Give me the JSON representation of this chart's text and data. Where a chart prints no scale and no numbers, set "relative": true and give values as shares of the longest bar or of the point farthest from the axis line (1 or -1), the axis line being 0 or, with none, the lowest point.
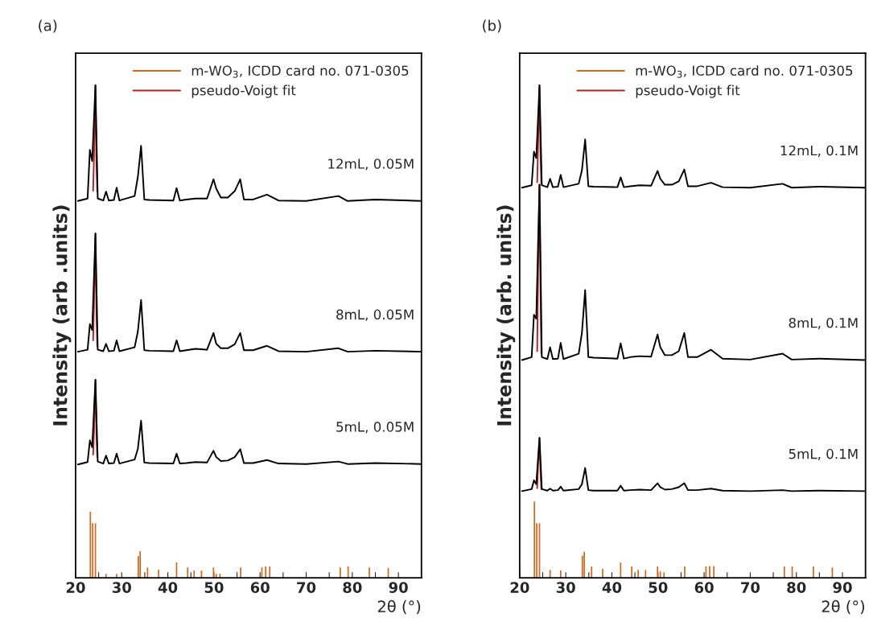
{
  "chart_data": [
    {
      "type": "line",
      "title": "(a)",
      "xlabel": "2θ (°)",
      "ylabel": "Intensity (arb .units)",
      "relative": true,
      "xlim": [
        20,
        95
      ],
      "xticks": [
        20,
        {
          "value": 25,
          "label": null
        },
        30,
        {
          "value": 35,
          "label": null
        },
        40,
        {
          "value": 45,
          "label": null
        },
        50,
        {
          "value": 55,
          "label": null
        },
        60,
        {
          "value": 65,
          "label": null
        },
        70,
        {
          "value": 75,
          "label": null
        },
        80,
        {
          "value": 85,
          "label": null
        },
        90
      ],
      "legend": "top right",
      "grid": false,
      "series": [
        {
          "name": "m-WO$_{3}$, ICDD card no. 071-0305",
          "type": "bar",
          "color": "#d2691e",
          "x": [
            23.2,
            23.7,
            24.3,
            26.6,
            28.9,
            33.6,
            34.0,
            35.6,
            38.0,
            41.9,
            44.3,
            45.7,
            47.3,
            49.9,
            50.5,
            51.3,
            55.8,
            60.4,
            61.2,
            62.1,
            77.4,
            79.1,
            83.7,
            87.8
          ],
          "values": [
            0.134,
            0.111,
            0.111,
            0.008,
            0.008,
            0.044,
            0.054,
            0.021,
            0.016,
            0.031,
            0.021,
            0.015,
            0.015,
            0.021,
            0.008,
            0.008,
            0.021,
            0.021,
            0.023,
            0.023,
            0.021,
            0.023,
            0.021,
            0.02
          ]
        },
        {
          "name": "pseudo-Voigt fit",
          "color": "#b22222",
          "x": [
            23.8,
            24.0,
            24.3,
            24.5,
            24.7
          ],
          "values": [
            0.786,
            0.86,
            1.0,
            0.85,
            0.784
          ]
        },
        {
          "color": "#b22222",
          "x": [
            23.8,
            24.0,
            24.3,
            24.5,
            24.7
          ],
          "values": [
            0.482,
            0.56,
            0.699,
            0.55,
            0.47
          ]
        },
        {
          "color": "#b22222",
          "x": [
            23.8,
            24.0,
            24.3,
            24.5,
            24.7
          ],
          "values": [
            0.25,
            0.3,
            0.402,
            0.3,
            0.245
          ]
        },
        {
          "name": "12mL, 0.05M",
          "color": "#000000",
          "x": [
            20.5,
            22.6,
            23.1,
            23.6,
            24.3,
            24.8,
            26.0,
            26.6,
            27.2,
            28.3,
            28.9,
            29.5,
            32.8,
            33.5,
            34.2,
            34.9,
            36,
            41.2,
            41.9,
            42.6,
            44,
            46,
            48.5,
            49.9,
            50.5,
            51.5,
            53,
            54.5,
            55.7,
            56.5,
            58.5,
            61.5,
            64,
            70,
            77,
            79,
            85,
            95
          ],
          "values": [
            0.765,
            0.77,
            0.869,
            0.846,
            1.0,
            0.77,
            0.766,
            0.784,
            0.766,
            0.767,
            0.792,
            0.766,
            0.775,
            0.814,
            0.877,
            0.768,
            0.767,
            0.766,
            0.791,
            0.766,
            0.768,
            0.77,
            0.77,
            0.809,
            0.79,
            0.772,
            0.772,
            0.785,
            0.809,
            0.768,
            0.768,
            0.778,
            0.766,
            0.765,
            0.775,
            0.765,
            0.768,
            0.765
          ]
        },
        {
          "name": "8mL, 0.05M",
          "color": "#000000",
          "x": [
            20.5,
            22.6,
            23.1,
            23.6,
            24.3,
            24.8,
            26.0,
            26.6,
            27.2,
            28.3,
            28.9,
            29.5,
            32.8,
            33.5,
            34.2,
            34.9,
            36,
            41.2,
            41.9,
            42.6,
            44,
            46,
            48.5,
            49.9,
            50.5,
            51.5,
            53,
            54.5,
            55.7,
            56.5,
            58.5,
            61.5,
            64,
            70,
            77,
            79,
            85,
            95
          ],
          "values": [
            0.459,
            0.463,
            0.515,
            0.503,
            0.699,
            0.463,
            0.46,
            0.475,
            0.46,
            0.461,
            0.482,
            0.46,
            0.468,
            0.5,
            0.564,
            0.462,
            0.461,
            0.46,
            0.482,
            0.46,
            0.462,
            0.465,
            0.463,
            0.497,
            0.475,
            0.466,
            0.466,
            0.474,
            0.497,
            0.462,
            0.462,
            0.471,
            0.46,
            0.459,
            0.466,
            0.459,
            0.461,
            0.459
          ]
        },
        {
          "name": "5mL, 0.05M",
          "color": "#000000",
          "x": [
            20.5,
            22.6,
            23.1,
            23.6,
            24.3,
            24.8,
            26.0,
            26.6,
            27.2,
            28.3,
            28.9,
            29.5,
            32.8,
            33.5,
            34.2,
            34.9,
            36,
            41.2,
            41.9,
            42.6,
            44,
            46,
            48.5,
            49.9,
            50.5,
            51.5,
            53,
            54.5,
            55.7,
            56.5,
            58.5,
            61.5,
            64,
            70,
            77,
            79,
            85,
            95
          ],
          "values": [
            0.23,
            0.235,
            0.279,
            0.265,
            0.402,
            0.236,
            0.232,
            0.248,
            0.232,
            0.233,
            0.252,
            0.232,
            0.24,
            0.262,
            0.319,
            0.234,
            0.233,
            0.232,
            0.252,
            0.232,
            0.233,
            0.235,
            0.234,
            0.258,
            0.245,
            0.237,
            0.238,
            0.245,
            0.261,
            0.233,
            0.233,
            0.239,
            0.232,
            0.231,
            0.236,
            0.231,
            0.233,
            0.231
          ]
        }
      ]
    },
    {
      "type": "line",
      "title": "(b)",
      "xlabel": "2θ (°)",
      "ylabel": "Intensity (arb. units)",
      "relative": true,
      "xlim": [
        20,
        95
      ],
      "xticks": [
        20,
        {
          "value": 25,
          "label": null
        },
        30,
        {
          "value": 35,
          "label": null
        },
        40,
        {
          "value": 45,
          "label": null
        },
        50,
        {
          "value": 55,
          "label": null
        },
        60,
        {
          "value": 65,
          "label": null
        },
        70,
        {
          "value": 75,
          "label": null
        },
        80,
        {
          "value": 85,
          "label": null
        },
        90
      ],
      "legend": "top right",
      "grid": false,
      "series": [
        {
          "name": "m-WO$_{3}$, ICDD card no. 071-0305",
          "type": "bar",
          "color": "#d2691e",
          "x": [
            23.2,
            23.7,
            24.3,
            26.6,
            28.9,
            33.6,
            34.0,
            35.6,
            38.0,
            41.9,
            44.3,
            45.7,
            47.3,
            49.9,
            50.5,
            51.3,
            55.8,
            60.4,
            61.2,
            62.1,
            77.4,
            79.1,
            83.7,
            87.8
          ],
          "values": [
            0.155,
            0.111,
            0.111,
            0.016,
            0.015,
            0.045,
            0.053,
            0.023,
            0.018,
            0.031,
            0.023,
            0.016,
            0.016,
            0.023,
            0.013,
            0.011,
            0.023,
            0.023,
            0.024,
            0.024,
            0.023,
            0.023,
            0.023,
            0.021
          ]
        },
        {
          "name": "pseudo-Voigt fit",
          "color": "#b22222",
          "x": [
            23.8,
            24.0,
            24.3,
            24.5,
            24.7
          ],
          "values": [
            0.803,
            0.88,
            1.0,
            0.87,
            0.8
          ]
        },
        {
          "color": "#b22222",
          "x": [
            23.8,
            24.0,
            24.3,
            24.5,
            24.7
          ],
          "values": [
            0.46,
            0.62,
            0.798,
            0.6,
            0.455
          ]
        },
        {
          "color": "#b22222",
          "x": [
            23.8,
            24.0,
            24.3,
            24.5,
            24.7
          ],
          "values": [
            0.182,
            0.23,
            0.284,
            0.22,
            0.18
          ]
        },
        {
          "name": "12mL, 0.1M",
          "color": "#000000",
          "x": [
            20.5,
            22.6,
            23.1,
            23.6,
            24.3,
            24.8,
            26.0,
            26.6,
            27.2,
            28.3,
            28.9,
            29.5,
            32.8,
            33.5,
            34.2,
            34.9,
            36,
            41.2,
            41.9,
            42.6,
            44,
            46,
            48.5,
            49.9,
            50.5,
            51.5,
            53,
            54.5,
            55.7,
            56.5,
            58.5,
            61.5,
            64,
            70,
            77,
            79,
            85,
            95
          ],
          "values": [
            0.792,
            0.797,
            0.865,
            0.852,
            1.0,
            0.797,
            0.793,
            0.81,
            0.793,
            0.794,
            0.818,
            0.793,
            0.8,
            0.827,
            0.89,
            0.795,
            0.794,
            0.793,
            0.813,
            0.793,
            0.795,
            0.797,
            0.796,
            0.826,
            0.81,
            0.798,
            0.798,
            0.805,
            0.829,
            0.795,
            0.795,
            0.802,
            0.793,
            0.792,
            0.8,
            0.792,
            0.794,
            0.792
          ]
        },
        {
          "name": "8mL, 0.1M",
          "color": "#000000",
          "x": [
            20.5,
            22.6,
            23.1,
            23.6,
            24.3,
            24.8,
            26.0,
            26.6,
            27.2,
            28.3,
            28.9,
            29.5,
            32.8,
            33.5,
            34.2,
            34.9,
            36,
            41.2,
            41.9,
            42.6,
            44,
            46,
            48.5,
            49.9,
            50.5,
            51.5,
            53,
            54.5,
            55.7,
            56.5,
            58.5,
            61.5,
            64,
            70,
            77,
            79,
            85,
            95
          ],
          "values": [
            0.442,
            0.448,
            0.534,
            0.526,
            0.798,
            0.448,
            0.444,
            0.468,
            0.444,
            0.445,
            0.477,
            0.444,
            0.455,
            0.497,
            0.584,
            0.448,
            0.447,
            0.445,
            0.476,
            0.445,
            0.448,
            0.45,
            0.449,
            0.494,
            0.468,
            0.452,
            0.452,
            0.46,
            0.497,
            0.448,
            0.448,
            0.463,
            0.445,
            0.443,
            0.455,
            0.443,
            0.445,
            0.442
          ]
        },
        {
          "name": "5mL, 0.1M",
          "color": "#000000",
          "x": [
            20.5,
            22.6,
            23.1,
            23.6,
            24.3,
            24.8,
            26.0,
            26.6,
            27.2,
            28.3,
            28.9,
            29.5,
            32.8,
            33.5,
            34.2,
            34.9,
            36,
            41.2,
            41.9,
            42.6,
            44,
            46,
            48.5,
            49.9,
            50.5,
            51.5,
            53,
            54.5,
            55.7,
            56.5,
            58.5,
            61.5,
            64,
            70,
            77,
            79,
            85,
            95
          ],
          "values": [
            0.176,
            0.18,
            0.198,
            0.19,
            0.284,
            0.18,
            0.177,
            0.181,
            0.177,
            0.178,
            0.185,
            0.177,
            0.18,
            0.19,
            0.223,
            0.178,
            0.177,
            0.177,
            0.187,
            0.177,
            0.178,
            0.179,
            0.178,
            0.192,
            0.184,
            0.179,
            0.18,
            0.184,
            0.192,
            0.178,
            0.178,
            0.181,
            0.177,
            0.176,
            0.178,
            0.176,
            0.177,
            0.176
          ]
        }
      ]
    }
  ]
}
